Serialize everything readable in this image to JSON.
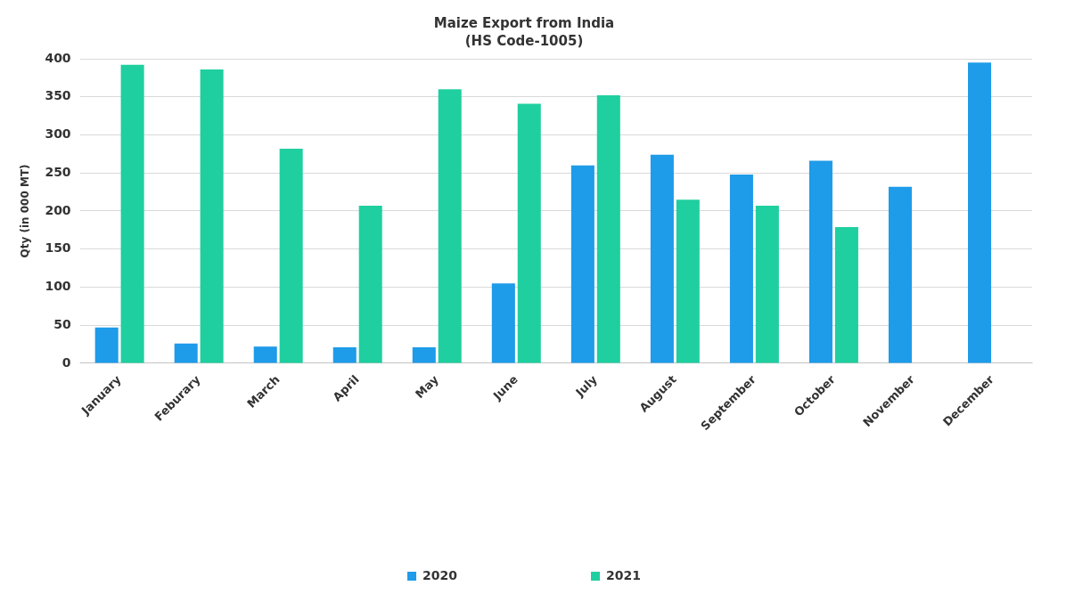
{
  "chart_data": {
    "type": "bar",
    "title": "Maize Export from India",
    "subtitle": "(HS Code-1005)",
    "ylabel": "Qty (in 000 MT)",
    "categories": [
      "January",
      "Feburary",
      "March",
      "April",
      "May",
      "June",
      "July",
      "August",
      "September",
      "October",
      "November",
      "December"
    ],
    "series": [
      {
        "name": "2020",
        "color": "#1e9be9",
        "values": [
          47,
          26,
          22,
          21,
          21,
          105,
          260,
          274,
          248,
          266,
          232,
          395
        ]
      },
      {
        "name": "2021",
        "color": "#1fcf9f",
        "values": [
          392,
          386,
          282,
          207,
          360,
          341,
          352,
          215,
          207,
          179,
          null,
          null
        ]
      }
    ],
    "ylim": [
      0,
      400
    ],
    "yticks": [
      0,
      50,
      100,
      150,
      200,
      250,
      300,
      350,
      400
    ],
    "grid": "y",
    "legend": "bottom"
  }
}
